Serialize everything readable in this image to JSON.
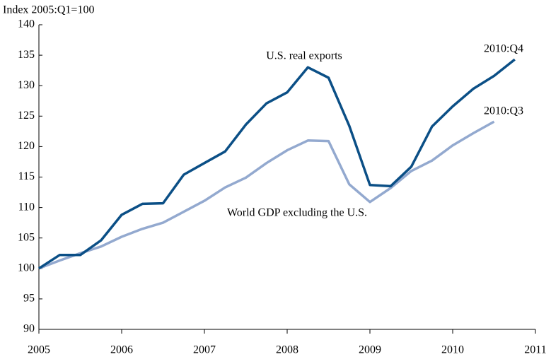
{
  "chart_data": {
    "type": "line",
    "axis_label": "Index 2005:Q1=100",
    "x": [
      2005,
      2005.25,
      2005.5,
      2005.75,
      2006,
      2006.25,
      2006.5,
      2006.75,
      2007,
      2007.25,
      2007.5,
      2007.75,
      2008,
      2008.25,
      2008.5,
      2008.75,
      2009,
      2009.25,
      2009.5,
      2009.75,
      2010,
      2010.25,
      2010.5,
      2010.75
    ],
    "series": [
      {
        "name": "U.S. real exports",
        "color": "#0b4f86",
        "values": [
          100,
          102.2,
          102.2,
          104.6,
          108.8,
          110.6,
          110.7,
          115.4,
          117.3,
          119.2,
          123.6,
          127.1,
          128.9,
          133.0,
          131.3,
          123.4,
          113.7,
          113.5,
          116.7,
          123.3,
          126.6,
          129.5,
          131.6,
          134.3
        ]
      },
      {
        "name": "World GDP excluding the U.S.",
        "color": "#93a9cf",
        "values": [
          100,
          101.3,
          102.5,
          103.6,
          105.2,
          106.5,
          107.5,
          109.3,
          111.1,
          113.3,
          114.9,
          117.3,
          119.4,
          121.0,
          120.9,
          113.8,
          110.9,
          113.2,
          116.0,
          117.7,
          120.2,
          122.2,
          124.1,
          null
        ]
      }
    ],
    "annotations": [
      "2010:Q4",
      "2010:Q3"
    ],
    "xlim": [
      2005,
      2011
    ],
    "xticks": [
      2005,
      2006,
      2007,
      2008,
      2009,
      2010,
      2011
    ],
    "ylim": [
      90,
      140
    ],
    "yticks": [
      90,
      95,
      100,
      105,
      110,
      115,
      120,
      125,
      130,
      135,
      140
    ],
    "grid": false
  }
}
